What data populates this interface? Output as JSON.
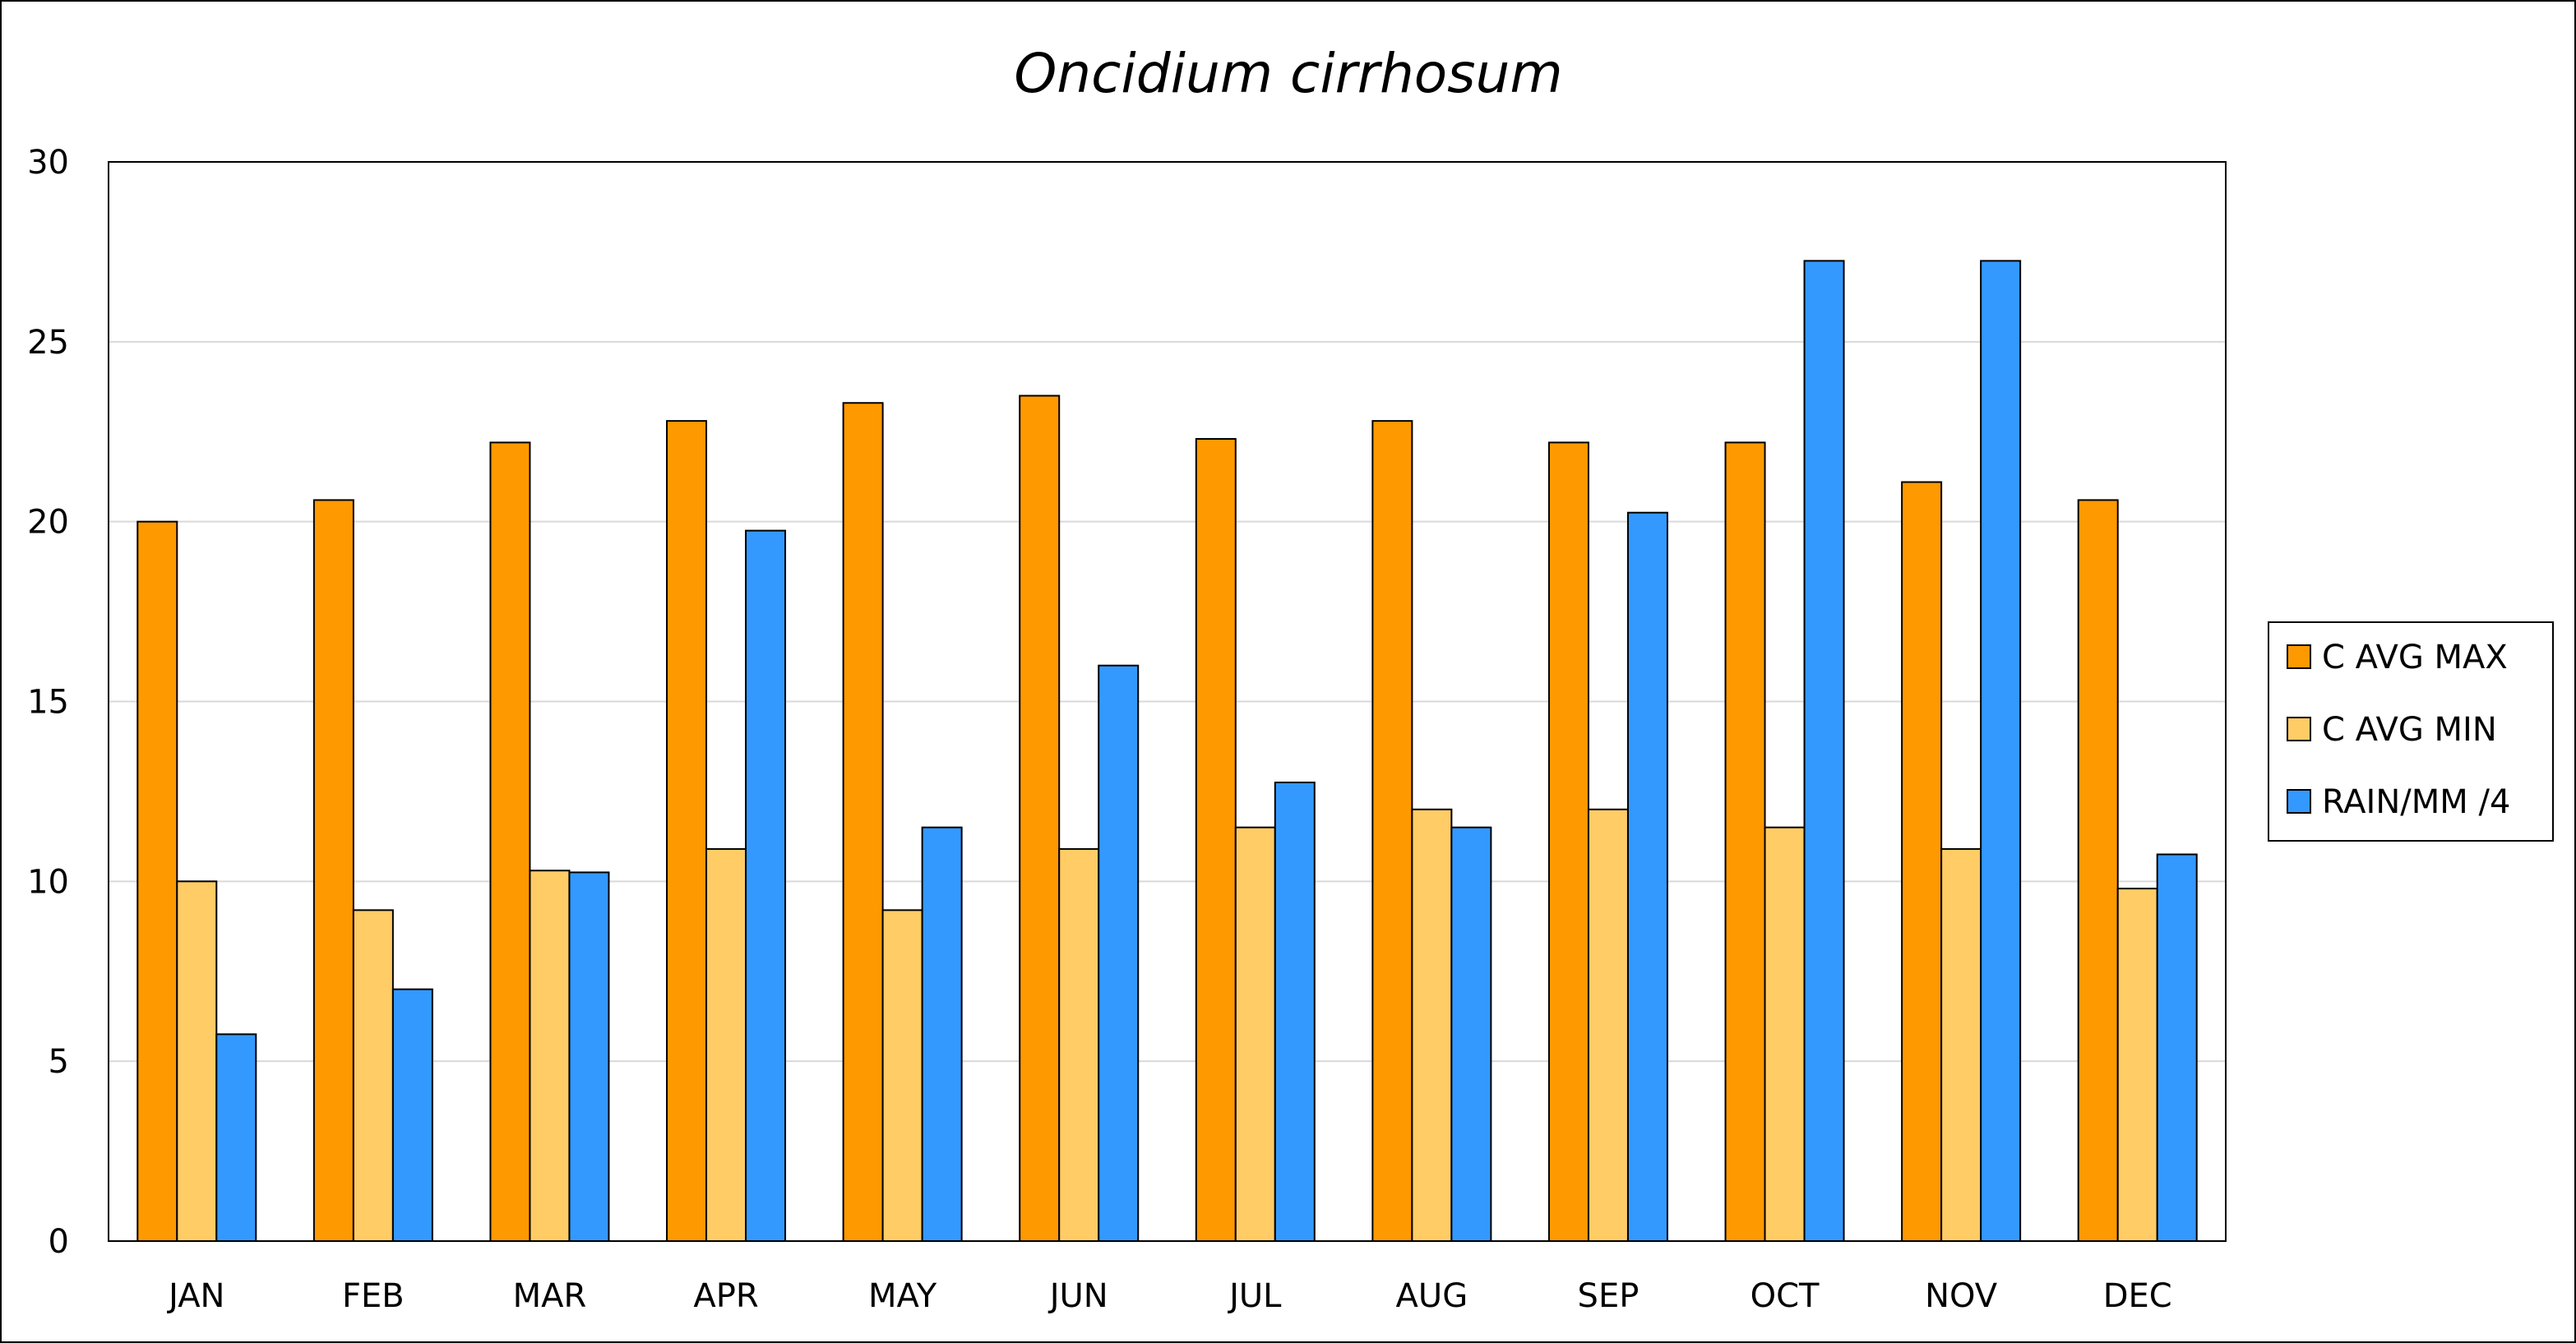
{
  "chart_data": {
    "type": "bar",
    "title": "Oncidium cirrhosum",
    "xlabel": "",
    "ylabel": "",
    "categories": [
      "JAN",
      "FEB",
      "MAR",
      "APR",
      "MAY",
      "JUN",
      "JUL",
      "AUG",
      "SEP",
      "OCT",
      "NOV",
      "DEC"
    ],
    "series": [
      {
        "name": "C AVG MAX",
        "color": "#FF9900",
        "values": [
          20.0,
          20.6,
          22.2,
          22.8,
          23.3,
          23.5,
          22.3,
          22.8,
          22.2,
          22.2,
          21.1,
          20.6
        ]
      },
      {
        "name": "C AVG MIN",
        "color": "#FFCC66",
        "values": [
          10.0,
          9.2,
          10.3,
          10.9,
          9.2,
          10.9,
          11.5,
          12.0,
          12.0,
          11.5,
          10.9,
          9.8
        ]
      },
      {
        "name": "RAIN/MM /4",
        "color": "#3399FF",
        "values": [
          5.75,
          7.0,
          10.25,
          19.75,
          11.5,
          16.0,
          12.75,
          11.5,
          20.25,
          27.25,
          27.25,
          10.75
        ]
      }
    ],
    "ylim": [
      0,
      30
    ],
    "yticks": [
      0,
      5,
      10,
      15,
      20,
      25,
      30
    ],
    "grid": true,
    "legend_position": "right"
  }
}
